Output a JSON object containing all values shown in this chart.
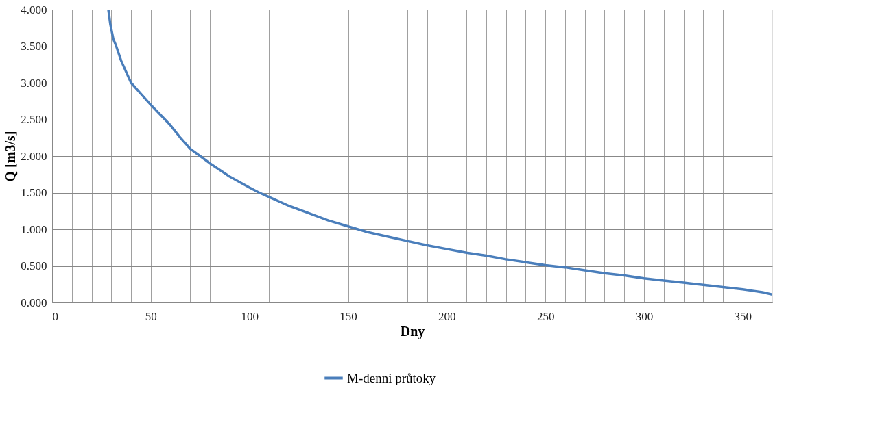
{
  "chart_data": {
    "type": "line",
    "xlabel": "Dny",
    "ylabel": "Q [m3/s]",
    "xlim": [
      0,
      365
    ],
    "ylim": [
      0,
      4
    ],
    "xticks": [
      0,
      {
        "value": 10,
        "label": null
      },
      {
        "value": 20,
        "label": null
      },
      {
        "value": 30,
        "label": null
      },
      {
        "value": 40,
        "label": null
      },
      50,
      {
        "value": 60,
        "label": null
      },
      {
        "value": 70,
        "label": null
      },
      {
        "value": 80,
        "label": null
      },
      {
        "value": 90,
        "label": null
      },
      100,
      {
        "value": 110,
        "label": null
      },
      {
        "value": 120,
        "label": null
      },
      {
        "value": 130,
        "label": null
      },
      {
        "value": 140,
        "label": null
      },
      150,
      {
        "value": 160,
        "label": null
      },
      {
        "value": 170,
        "label": null
      },
      {
        "value": 180,
        "label": null
      },
      {
        "value": 190,
        "label": null
      },
      200,
      {
        "value": 210,
        "label": null
      },
      {
        "value": 220,
        "label": null
      },
      {
        "value": 230,
        "label": null
      },
      {
        "value": 240,
        "label": null
      },
      250,
      {
        "value": 260,
        "label": null
      },
      {
        "value": 270,
        "label": null
      },
      {
        "value": 280,
        "label": null
      },
      {
        "value": 290,
        "label": null
      },
      300,
      {
        "value": 310,
        "label": null
      },
      {
        "value": 320,
        "label": null
      },
      {
        "value": 330,
        "label": null
      },
      {
        "value": 340,
        "label": null
      },
      350,
      {
        "value": 360,
        "label": null
      }
    ],
    "yticks": [
      {
        "value": 0,
        "label": "0.000"
      },
      {
        "value": 0.5,
        "label": "0.500"
      },
      {
        "value": 1,
        "label": "1.000"
      },
      {
        "value": 1.5,
        "label": "1.500"
      },
      {
        "value": 2,
        "label": "2.000"
      },
      {
        "value": 2.5,
        "label": "2.500"
      },
      {
        "value": 3,
        "label": "3.000"
      },
      {
        "value": 3.5,
        "label": "3.500"
      },
      {
        "value": 4,
        "label": "4.000"
      }
    ],
    "grid": true,
    "legend": "bottom",
    "marker": "none",
    "line_style": "solid",
    "series": [
      {
        "name": "M-denni průtoky",
        "color": "#4a7ebb",
        "x": [
          28.5,
          29.5,
          31,
          32.5,
          35,
          38,
          40,
          45,
          50,
          55,
          60,
          65,
          70,
          75,
          80,
          90,
          100,
          105,
          110,
          120,
          130,
          140,
          150,
          160,
          170,
          180,
          190,
          200,
          210,
          220,
          230,
          240,
          250,
          260,
          270,
          280,
          290,
          300,
          310,
          320,
          330,
          340,
          350,
          355,
          360,
          365
        ],
        "values": [
          4.0,
          3.8,
          3.6,
          3.5,
          3.3,
          3.12,
          3.0,
          2.85,
          2.7,
          2.56,
          2.42,
          2.25,
          2.1,
          2.0,
          1.9,
          1.72,
          1.57,
          1.5,
          1.44,
          1.32,
          1.22,
          1.12,
          1.04,
          0.96,
          0.9,
          0.84,
          0.78,
          0.73,
          0.68,
          0.64,
          0.59,
          0.55,
          0.51,
          0.48,
          0.44,
          0.4,
          0.37,
          0.33,
          0.3,
          0.27,
          0.24,
          0.21,
          0.18,
          0.16,
          0.14,
          0.11
        ]
      }
    ]
  }
}
